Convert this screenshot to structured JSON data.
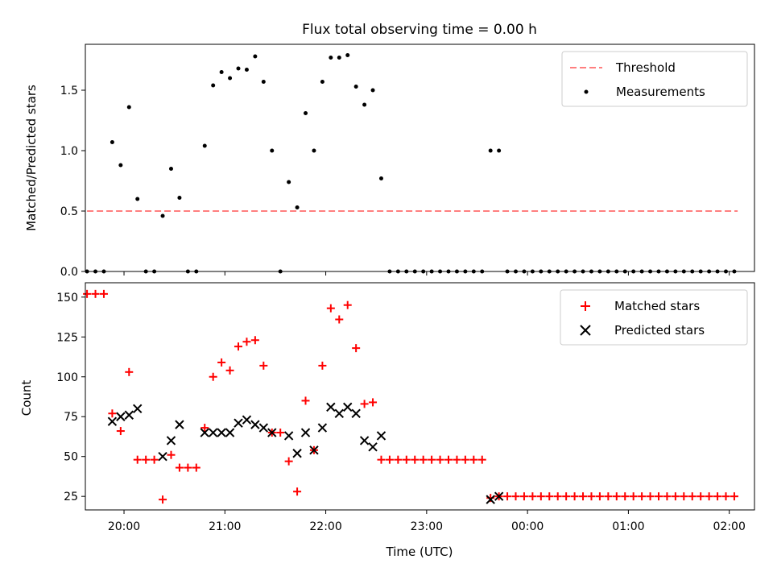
{
  "chart_data": [
    {
      "type": "scatter",
      "title": "Flux total observing time = 0.00 h",
      "xlabel": "",
      "ylabel": "Matched/Predicted stars",
      "ylim": [
        0,
        1.88
      ],
      "yticks": [
        "0.0",
        "0.5",
        "1.0",
        "1.5"
      ],
      "ytick_values": [
        0,
        0.5,
        1.0,
        1.5
      ],
      "legend_position": "top-right",
      "grid": false,
      "series": [
        {
          "name": "Threshold",
          "kind": "line",
          "style": "dashed",
          "color": "#ff7f7f",
          "points": [
            [
              "19:38",
              0.5
            ],
            [
              "02:05",
              0.5
            ]
          ]
        },
        {
          "name": "Measurements",
          "kind": "scatter",
          "marker": "dot",
          "color": "#000000",
          "points": [
            [
              "19:38",
              0
            ],
            [
              "19:43",
              0
            ],
            [
              "19:48",
              0
            ],
            [
              "19:53",
              1.07
            ],
            [
              "19:58",
              0.88
            ],
            [
              "20:03",
              1.36
            ],
            [
              "20:08",
              0.6
            ],
            [
              "20:13",
              0
            ],
            [
              "20:18",
              0
            ],
            [
              "20:23",
              0.46
            ],
            [
              "20:28",
              0.85
            ],
            [
              "20:33",
              0.61
            ],
            [
              "20:38",
              0
            ],
            [
              "20:43",
              0
            ],
            [
              "20:48",
              1.04
            ],
            [
              "20:53",
              1.54
            ],
            [
              "20:58",
              1.65
            ],
            [
              "21:03",
              1.6
            ],
            [
              "21:08",
              1.68
            ],
            [
              "21:13",
              1.67
            ],
            [
              "21:18",
              1.78
            ],
            [
              "21:23",
              1.57
            ],
            [
              "21:28",
              1.0
            ],
            [
              "21:33",
              0
            ],
            [
              "21:38",
              0.74
            ],
            [
              "21:43",
              0.53
            ],
            [
              "21:48",
              1.31
            ],
            [
              "21:53",
              1.0
            ],
            [
              "21:58",
              1.57
            ],
            [
              "22:03",
              1.77
            ],
            [
              "22:08",
              1.77
            ],
            [
              "22:13",
              1.79
            ],
            [
              "22:18",
              1.53
            ],
            [
              "22:23",
              1.38
            ],
            [
              "22:28",
              1.5
            ],
            [
              "22:33",
              0.77
            ],
            [
              "22:38",
              0
            ],
            [
              "22:43",
              0
            ],
            [
              "22:48",
              0
            ],
            [
              "22:53",
              0
            ],
            [
              "22:58",
              0
            ],
            [
              "23:03",
              0
            ],
            [
              "23:08",
              0
            ],
            [
              "23:13",
              0
            ],
            [
              "23:18",
              0
            ],
            [
              "23:23",
              0
            ],
            [
              "23:28",
              0
            ],
            [
              "23:33",
              0
            ],
            [
              "23:38",
              1.0
            ],
            [
              "23:43",
              1.0
            ],
            [
              "23:48",
              0
            ],
            [
              "23:53",
              0
            ],
            [
              "23:58",
              0
            ],
            [
              "00:03",
              0
            ],
            [
              "00:08",
              0
            ],
            [
              "00:13",
              0
            ],
            [
              "00:18",
              0
            ],
            [
              "00:23",
              0
            ],
            [
              "00:28",
              0
            ],
            [
              "00:33",
              0
            ],
            [
              "00:38",
              0
            ],
            [
              "00:43",
              0
            ],
            [
              "00:48",
              0
            ],
            [
              "00:53",
              0
            ],
            [
              "00:58",
              0
            ],
            [
              "01:03",
              0
            ],
            [
              "01:08",
              0
            ],
            [
              "01:13",
              0
            ],
            [
              "01:18",
              0
            ],
            [
              "01:23",
              0
            ],
            [
              "01:28",
              0
            ],
            [
              "01:33",
              0
            ],
            [
              "01:38",
              0
            ],
            [
              "01:43",
              0
            ],
            [
              "01:48",
              0
            ],
            [
              "01:53",
              0
            ],
            [
              "01:58",
              0
            ],
            [
              "02:03",
              0
            ]
          ]
        }
      ]
    },
    {
      "type": "scatter",
      "title": "",
      "xlabel": "Time (UTC)",
      "ylabel": "Count",
      "ylim": [
        16.5,
        159
      ],
      "yticks": [
        "25",
        "50",
        "75",
        "100",
        "125",
        "150"
      ],
      "ytick_values": [
        25,
        50,
        75,
        100,
        125,
        150
      ],
      "xticks": [
        "20:00",
        "21:00",
        "22:00",
        "23:00",
        "00:00",
        "01:00",
        "02:00"
      ],
      "legend_position": "top-right",
      "grid": false,
      "series": [
        {
          "name": "Matched stars",
          "kind": "scatter",
          "marker": "plus",
          "color": "#ff0000",
          "points": [
            [
              "19:38",
              152
            ],
            [
              "19:43",
              152
            ],
            [
              "19:48",
              152
            ],
            [
              "19:53",
              77
            ],
            [
              "19:58",
              66
            ],
            [
              "20:03",
              103
            ],
            [
              "20:08",
              48
            ],
            [
              "20:13",
              48
            ],
            [
              "20:18",
              48
            ],
            [
              "20:23",
              23
            ],
            [
              "20:28",
              51
            ],
            [
              "20:33",
              43
            ],
            [
              "20:38",
              43
            ],
            [
              "20:43",
              43
            ],
            [
              "20:48",
              68
            ],
            [
              "20:53",
              100
            ],
            [
              "20:58",
              109
            ],
            [
              "21:03",
              104
            ],
            [
              "21:08",
              119
            ],
            [
              "21:13",
              122
            ],
            [
              "21:18",
              123
            ],
            [
              "21:23",
              107
            ],
            [
              "21:28",
              65
            ],
            [
              "21:33",
              65
            ],
            [
              "21:38",
              47
            ],
            [
              "21:43",
              28
            ],
            [
              "21:48",
              85
            ],
            [
              "21:53",
              54
            ],
            [
              "21:58",
              107
            ],
            [
              "22:03",
              143
            ],
            [
              "22:08",
              136
            ],
            [
              "22:13",
              145
            ],
            [
              "22:18",
              118
            ],
            [
              "22:23",
              83
            ],
            [
              "22:28",
              84
            ],
            [
              "22:33",
              48
            ],
            [
              "22:38",
              48
            ],
            [
              "22:43",
              48
            ],
            [
              "22:48",
              48
            ],
            [
              "22:53",
              48
            ],
            [
              "22:58",
              48
            ],
            [
              "23:03",
              48
            ],
            [
              "23:08",
              48
            ],
            [
              "23:13",
              48
            ],
            [
              "23:18",
              48
            ],
            [
              "23:23",
              48
            ],
            [
              "23:28",
              48
            ],
            [
              "23:33",
              48
            ],
            [
              "23:38",
              24
            ],
            [
              "23:43",
              25
            ],
            [
              "23:48",
              25
            ],
            [
              "23:53",
              25
            ],
            [
              "23:58",
              25
            ],
            [
              "00:03",
              25
            ],
            [
              "00:08",
              25
            ],
            [
              "00:13",
              25
            ],
            [
              "00:18",
              25
            ],
            [
              "00:23",
              25
            ],
            [
              "00:28",
              25
            ],
            [
              "00:33",
              25
            ],
            [
              "00:38",
              25
            ],
            [
              "00:43",
              25
            ],
            [
              "00:48",
              25
            ],
            [
              "00:53",
              25
            ],
            [
              "00:58",
              25
            ],
            [
              "01:03",
              25
            ],
            [
              "01:08",
              25
            ],
            [
              "01:13",
              25
            ],
            [
              "01:18",
              25
            ],
            [
              "01:23",
              25
            ],
            [
              "01:28",
              25
            ],
            [
              "01:33",
              25
            ],
            [
              "01:38",
              25
            ],
            [
              "01:43",
              25
            ],
            [
              "01:48",
              25
            ],
            [
              "01:53",
              25
            ],
            [
              "01:58",
              25
            ],
            [
              "02:03",
              25
            ]
          ]
        },
        {
          "name": "Predicted stars",
          "kind": "scatter",
          "marker": "x",
          "color": "#000000",
          "points": [
            [
              "19:53",
              72
            ],
            [
              "19:58",
              75
            ],
            [
              "20:03",
              76
            ],
            [
              "20:08",
              80
            ],
            [
              "20:23",
              50
            ],
            [
              "20:28",
              60
            ],
            [
              "20:33",
              70
            ],
            [
              "20:48",
              65
            ],
            [
              "20:53",
              65
            ],
            [
              "20:58",
              65
            ],
            [
              "21:03",
              65
            ],
            [
              "21:08",
              71
            ],
            [
              "21:13",
              73
            ],
            [
              "21:18",
              70
            ],
            [
              "21:23",
              68
            ],
            [
              "21:28",
              65
            ],
            [
              "21:38",
              63
            ],
            [
              "21:43",
              52
            ],
            [
              "21:48",
              65
            ],
            [
              "21:53",
              54
            ],
            [
              "21:58",
              68
            ],
            [
              "22:03",
              81
            ],
            [
              "22:08",
              77
            ],
            [
              "22:13",
              81
            ],
            [
              "22:18",
              77
            ],
            [
              "22:23",
              60
            ],
            [
              "22:28",
              56
            ],
            [
              "22:33",
              63
            ],
            [
              "23:38",
              23
            ],
            [
              "23:43",
              25
            ]
          ]
        }
      ]
    }
  ]
}
